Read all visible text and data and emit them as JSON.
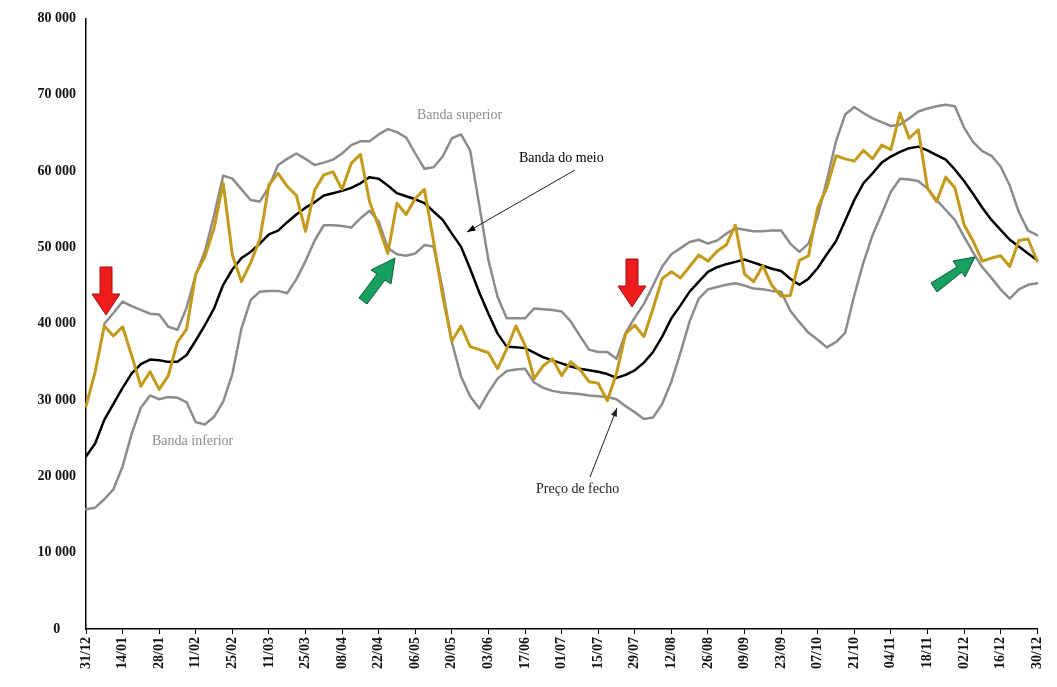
{
  "chart_data": {
    "type": "line",
    "ylim": [
      0,
      80000
    ],
    "categories": [
      "31/12",
      null,
      null,
      null,
      "14/01",
      null,
      null,
      null,
      "28/01",
      null,
      null,
      null,
      "11/02",
      null,
      null,
      null,
      "25/02",
      null,
      null,
      null,
      "11/03",
      null,
      null,
      null,
      "25/03",
      null,
      null,
      null,
      "08/04",
      null,
      null,
      null,
      "22/04",
      null,
      null,
      null,
      "06/05",
      null,
      null,
      null,
      "20/05",
      null,
      null,
      null,
      "03/06",
      null,
      null,
      null,
      "17/06",
      null,
      null,
      null,
      "01/07",
      null,
      null,
      null,
      "15/07",
      null,
      null,
      null,
      "29/07",
      null,
      null,
      null,
      "12/08",
      null,
      null,
      null,
      "26/08",
      null,
      null,
      null,
      "09/09",
      null,
      null,
      null,
      "23/09",
      null,
      null,
      null,
      "07/10",
      null,
      null,
      null,
      "21/10",
      null,
      null,
      null,
      "04/11",
      null,
      null,
      null,
      "18/11",
      null,
      null,
      null,
      "02/12",
      null,
      null,
      null,
      "16/12",
      null,
      null,
      null,
      "30/12"
    ],
    "yticks": [
      {
        "value": 0,
        "label": "0"
      },
      {
        "value": 10000,
        "label": "10 000"
      },
      {
        "value": 20000,
        "label": "20 000"
      },
      {
        "value": 30000,
        "label": "30 000"
      },
      {
        "value": 40000,
        "label": "40 000"
      },
      {
        "value": 50000,
        "label": "50 000"
      },
      {
        "value": 60000,
        "label": "60 000"
      },
      {
        "value": 70000,
        "label": "70 000"
      },
      {
        "value": 80000,
        "label": "80 000"
      }
    ],
    "grid": false,
    "legend": false,
    "marker": "none",
    "line_style": "solid",
    "series": [
      {
        "name": "Banda superior",
        "color": "#8c8c8c",
        "values": [
          null,
          null,
          40000,
          41400,
          42900,
          42300,
          41800,
          41300,
          41200,
          39600,
          39200,
          42100,
          46400,
          49500,
          54200,
          59400,
          59000,
          57600,
          56200,
          56000,
          57900,
          60800,
          61600,
          62300,
          61600,
          60800,
          61100,
          61500,
          62300,
          63400,
          63900,
          63900,
          64800,
          65500,
          65100,
          64400,
          62300,
          60300,
          60500,
          61900,
          64300,
          64800,
          62700,
          55500,
          48300,
          43500,
          40700,
          40700,
          40700,
          42000,
          41900,
          41800,
          41600,
          40300,
          38400,
          36600,
          36300,
          36300,
          35400,
          38800,
          40800,
          42600,
          45000,
          47500,
          49100,
          49900,
          50700,
          51000,
          50500,
          50900,
          51800,
          52500,
          52300,
          52100,
          52100,
          52200,
          52200,
          50500,
          49400,
          50500,
          54100,
          58800,
          63900,
          67400,
          68400,
          67600,
          66900,
          66400,
          65900,
          66100,
          66900,
          67800,
          68200,
          68500,
          68700,
          68500,
          65700,
          63800,
          62600,
          62000,
          60600,
          58100,
          54600,
          52200,
          51600
        ]
      },
      {
        "name": "Banda do meio",
        "color": "#000000",
        "values": [
          22600,
          24300,
          27400,
          29500,
          31600,
          33500,
          34700,
          35300,
          35200,
          35000,
          35000,
          35900,
          37800,
          39800,
          42000,
          45100,
          47100,
          48600,
          49400,
          50500,
          51700,
          52200,
          53300,
          54300,
          55200,
          55900,
          56800,
          57100,
          57400,
          57800,
          58400,
          59200,
          59000,
          58100,
          57100,
          56700,
          56300,
          55800,
          54700,
          53600,
          51800,
          50100,
          47200,
          44100,
          41300,
          38700,
          37000,
          36900,
          36800,
          36200,
          35600,
          35200,
          34800,
          34400,
          34100,
          33900,
          33700,
          33400,
          32900,
          33300,
          33900,
          34900,
          36300,
          38300,
          40700,
          42400,
          44200,
          45500,
          46800,
          47400,
          47800,
          48100,
          48400,
          48000,
          47600,
          47200,
          46900,
          45900,
          45100,
          45900,
          47300,
          49100,
          50800,
          53500,
          56200,
          58400,
          59700,
          61100,
          61900,
          62500,
          63000,
          63200,
          62700,
          62100,
          61500,
          60200,
          58700,
          57000,
          55200,
          53600,
          52300,
          51000,
          50100,
          49200,
          48300
        ]
      },
      {
        "name": "Banda inferior",
        "color": "#8c8c8c",
        "values": [
          15700,
          15900,
          17000,
          18300,
          21300,
          25600,
          29000,
          30600,
          30100,
          30400,
          30300,
          29700,
          27100,
          26800,
          27800,
          29800,
          33400,
          39400,
          43100,
          44200,
          44300,
          44300,
          44000,
          45800,
          48200,
          50900,
          52900,
          52900,
          52800,
          52600,
          53800,
          54800,
          53400,
          49900,
          49100,
          48900,
          49200,
          50300,
          50100,
          44500,
          37600,
          33100,
          30500,
          28900,
          31000,
          32800,
          33800,
          34000,
          34100,
          32300,
          31600,
          31200,
          31000,
          30900,
          30800,
          30600,
          30500,
          30400,
          30100,
          29200,
          28400,
          27500,
          27700,
          29500,
          32400,
          36200,
          40300,
          43300,
          44500,
          44800,
          45100,
          45300,
          45000,
          44600,
          44500,
          44300,
          44200,
          41700,
          40200,
          38800,
          37900,
          36900,
          37600,
          38800,
          43700,
          48000,
          51600,
          54400,
          57300,
          59000,
          58900,
          58700,
          57700,
          56200,
          54900,
          53600,
          51400,
          49300,
          47400,
          46000,
          44500,
          43300,
          44500,
          45100,
          45300
        ]
      },
      {
        "name": "Preço de fecho",
        "color": "#c49a1a",
        "values": [
          29200,
          33700,
          39700,
          38400,
          39600,
          35800,
          31800,
          33700,
          31400,
          33200,
          37600,
          39300,
          46500,
          48800,
          52500,
          58400,
          49000,
          45500,
          48000,
          51000,
          58200,
          59700,
          58000,
          56800,
          52100,
          57500,
          59500,
          59900,
          57600,
          61000,
          62200,
          56000,
          52700,
          49200,
          55800,
          54300,
          56400,
          57600,
          50800,
          43600,
          37700,
          39700,
          37000,
          36600,
          36200,
          34100,
          36700,
          39700,
          37200,
          32800,
          34500,
          35400,
          33200,
          35000,
          34000,
          32400,
          32200,
          29900,
          33500,
          38700,
          39800,
          38300,
          42000,
          45900,
          46800,
          46000,
          47500,
          49000,
          48200,
          49500,
          50300,
          52900,
          46500,
          45500,
          47600,
          45000,
          43600,
          43700,
          48300,
          48900,
          55200,
          57800,
          62000,
          61600,
          61300,
          62700,
          61600,
          63400,
          62800,
          67600,
          64300,
          65400,
          57800,
          56000,
          59200,
          57800,
          53000,
          50800,
          48200,
          48600,
          48900,
          47500,
          50900,
          51100,
          48200
        ]
      }
    ]
  }
}
